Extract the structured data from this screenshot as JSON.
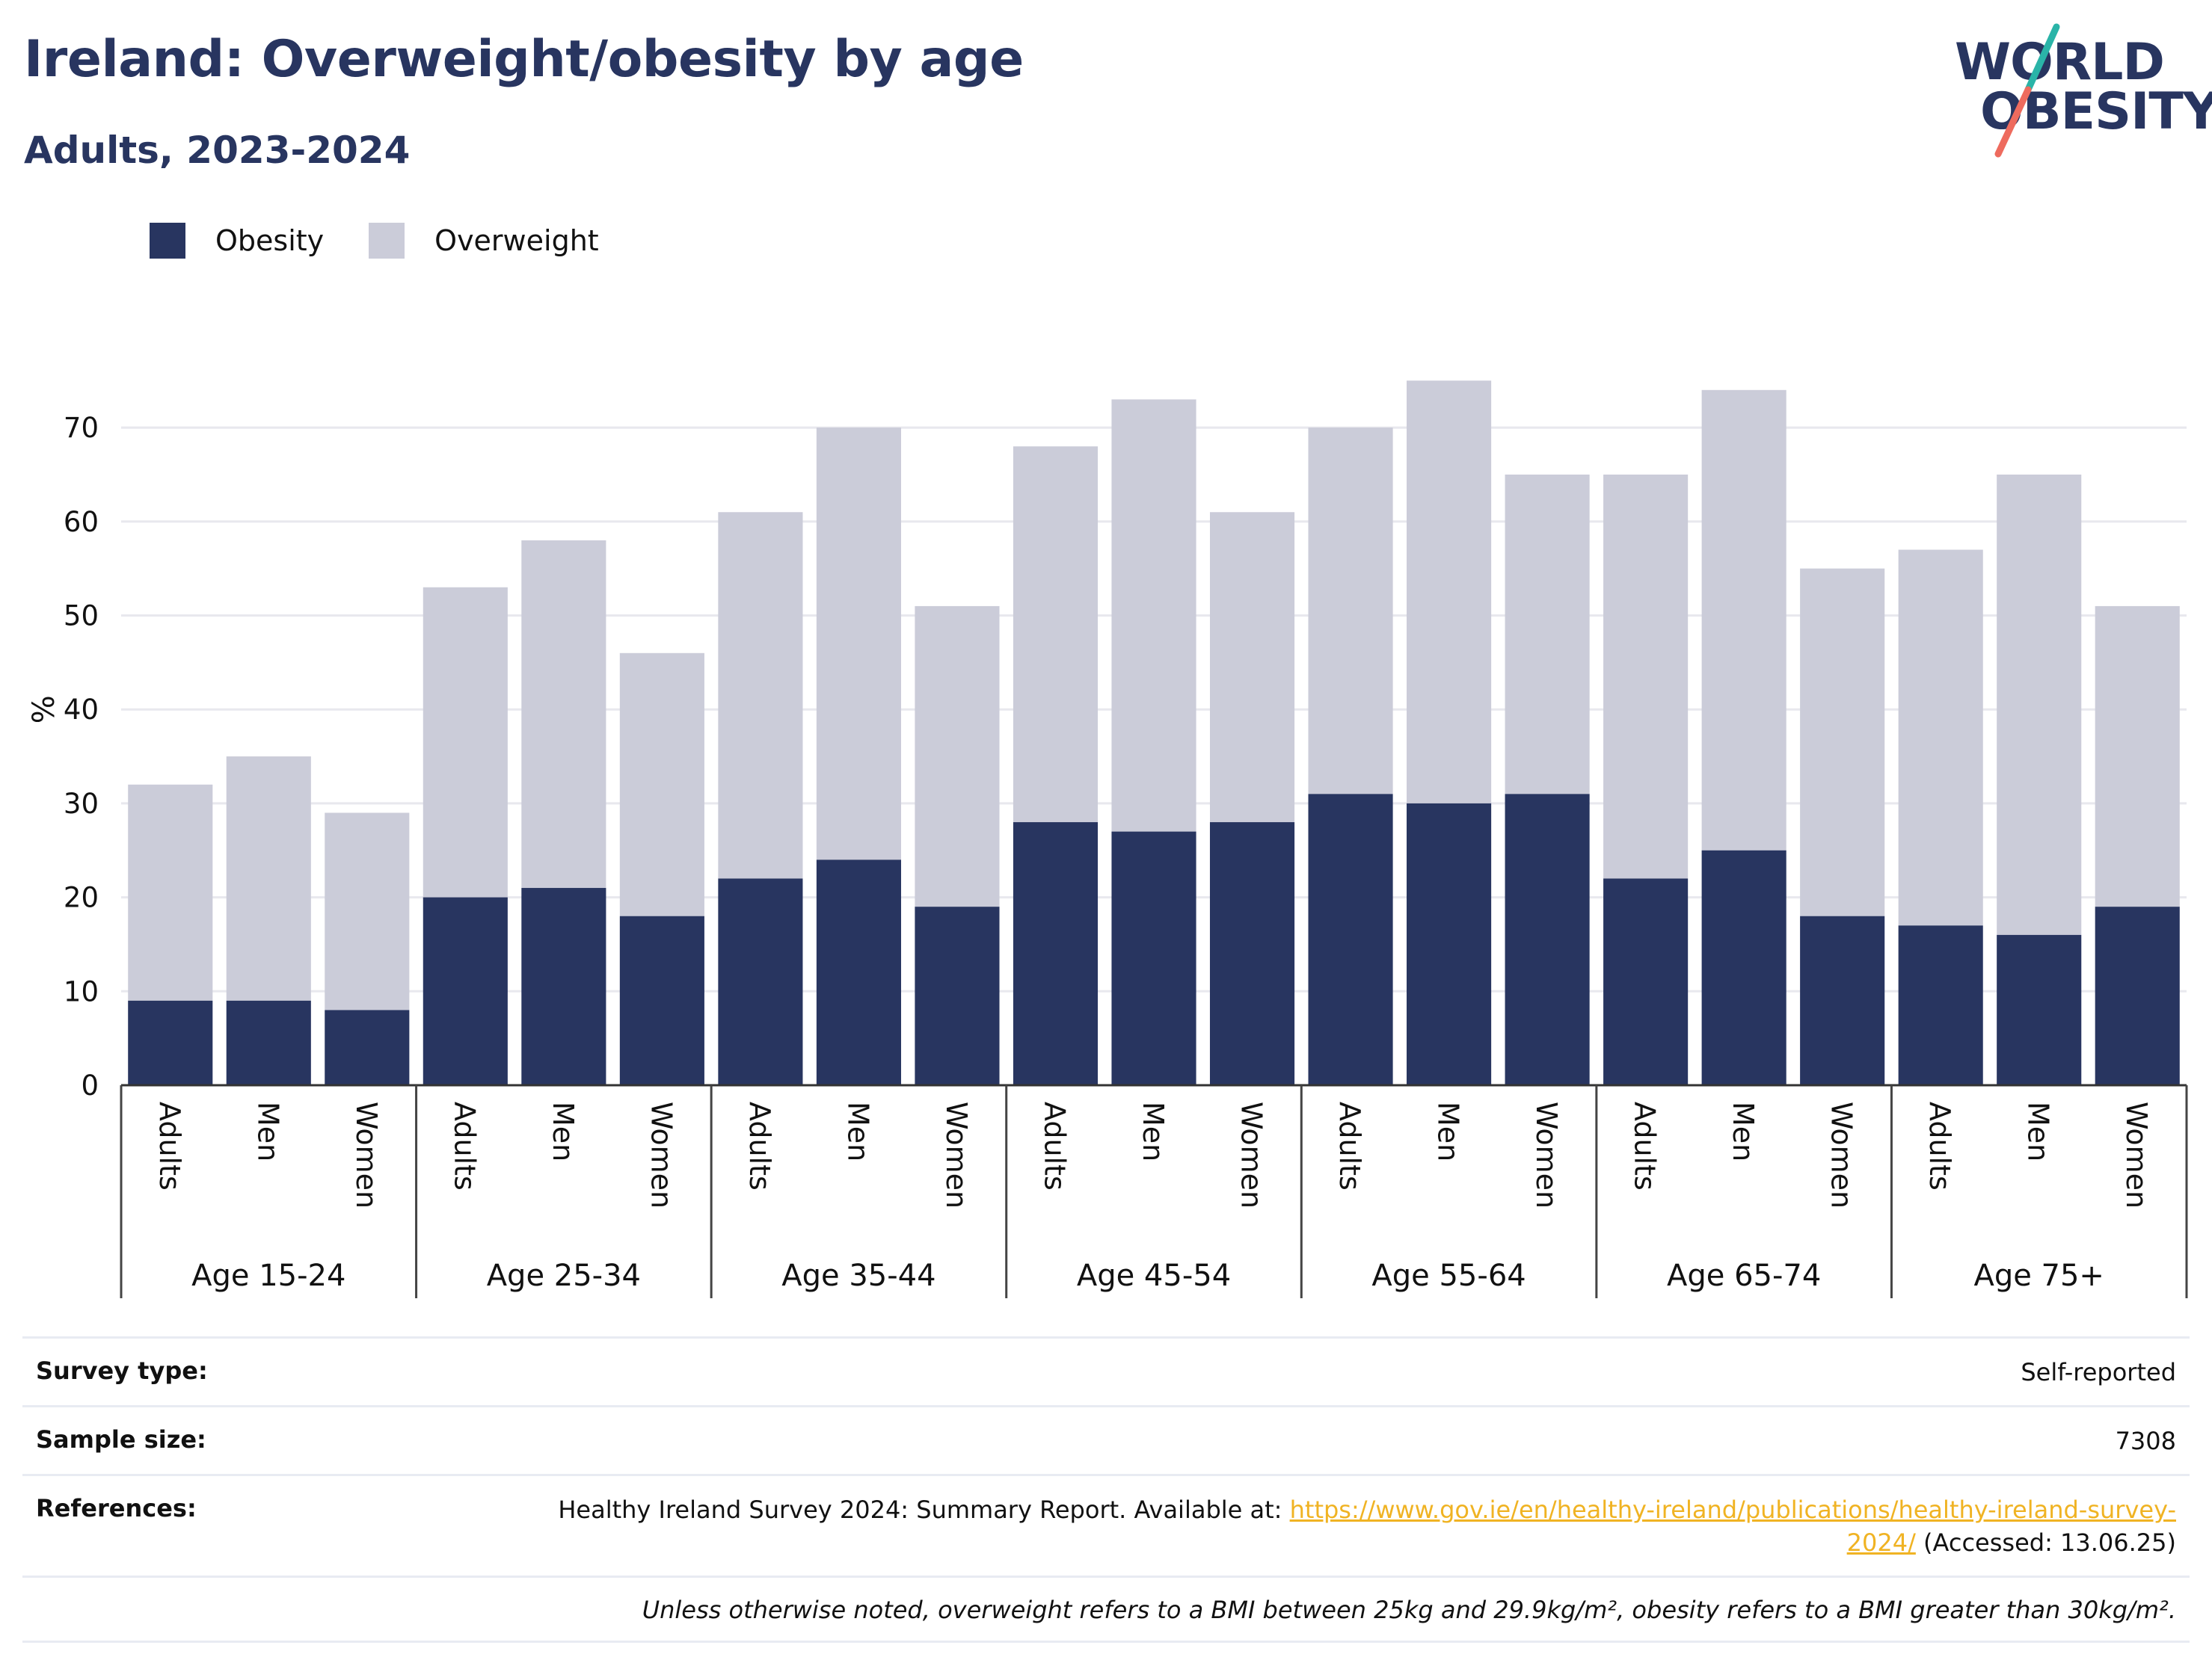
{
  "header": {
    "title": "Ireland: Overweight/obesity by age",
    "subtitle": "Adults, 2023-2024"
  },
  "logo": {
    "line1": "WORLD",
    "line2": "OBESITY",
    "colors": {
      "text": "#283560",
      "slash_top": "#2ab4a8",
      "slash_bottom": "#ee6b5e"
    }
  },
  "colors": {
    "obesity": "#283560",
    "overweight": "#cbccd9",
    "grid": "#e8e8ee",
    "axis": "#333333"
  },
  "chart_data": {
    "type": "bar",
    "stacked": true,
    "ylabel": "%",
    "ylim": [
      0,
      80
    ],
    "yticks": [
      0,
      10,
      20,
      30,
      40,
      50,
      60,
      70
    ],
    "grid": true,
    "legend_position": "top-left",
    "groups": [
      "Age 15-24",
      "Age 25-34",
      "Age 35-44",
      "Age 45-54",
      "Age 55-64",
      "Age 65-74",
      "Age 75+"
    ],
    "subcategories": [
      "Adults",
      "Men",
      "Women"
    ],
    "series": [
      {
        "name": "Obesity",
        "color": "#283560",
        "values": [
          9,
          9,
          8,
          20,
          21,
          18,
          22,
          24,
          19,
          28,
          27,
          28,
          31,
          30,
          31,
          22,
          25,
          18,
          17,
          16,
          19
        ]
      },
      {
        "name": "Overweight",
        "color": "#cbccd9",
        "values": [
          23,
          26,
          21,
          33,
          37,
          28,
          39,
          46,
          32,
          40,
          46,
          33,
          39,
          45,
          34,
          43,
          49,
          37,
          40,
          49,
          32
        ]
      }
    ]
  },
  "info": {
    "survey_label": "Survey type:",
    "survey_value": "Self-reported",
    "sample_label": "Sample size:",
    "sample_value": "7308",
    "ref_label": "References:",
    "ref_text": "Healthy Ireland Survey 2024: Summary Report. Available at: ",
    "ref_url": "https://www.gov.ie/en/healthy-ireland/publications/healthy-ireland-survey-2024/",
    "ref_accessed": " (Accessed: 13.06.25)",
    "footnote": "Unless otherwise noted, overweight refers to a BMI between 25kg and 29.9kg/m², obesity refers to a BMI greater than 30kg/m²."
  }
}
